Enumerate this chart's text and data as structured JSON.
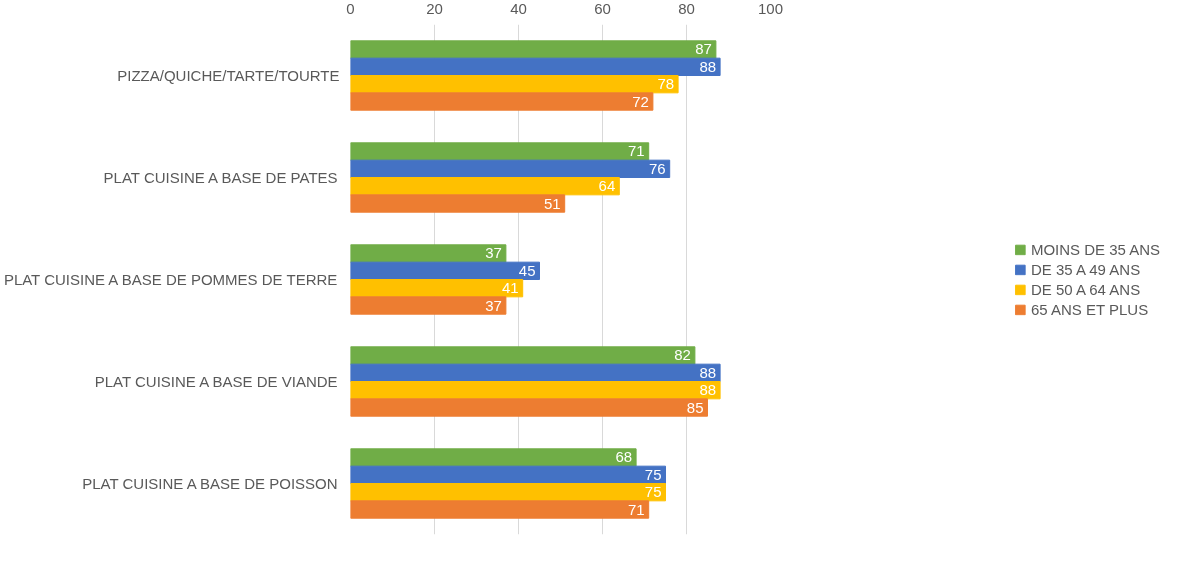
{
  "chart_data": {
    "type": "bar",
    "orientation": "horizontal",
    "categories": [
      "PIZZA/QUICHE/TARTE/TOURTE",
      "PLAT CUISINE A BASE DE PATES",
      "PLAT CUISINE A BASE DE POMMES DE TERRE",
      "PLAT CUISINE A BASE DE VIANDE",
      "PLAT CUISINE A BASE DE POISSON"
    ],
    "series": [
      {
        "name": "MOINS DE 35 ANS",
        "color": "#70ad47",
        "values": [
          87,
          71,
          37,
          82,
          68
        ]
      },
      {
        "name": "DE 35 A 49 ANS",
        "color": "#4472c4",
        "values": [
          88,
          76,
          45,
          88,
          75
        ]
      },
      {
        "name": "DE 50 A 64 ANS",
        "color": "#ffc000",
        "values": [
          78,
          64,
          41,
          88,
          75
        ]
      },
      {
        "name": "65 ANS ET PLUS",
        "color": "#ed7d31",
        "values": [
          72,
          51,
          37,
          85,
          71
        ]
      }
    ],
    "xlim": [
      0,
      100
    ],
    "xticks": [
      0,
      20,
      40,
      60,
      80,
      100
    ],
    "grid": "x",
    "legend": "right",
    "data_labels": true
  }
}
